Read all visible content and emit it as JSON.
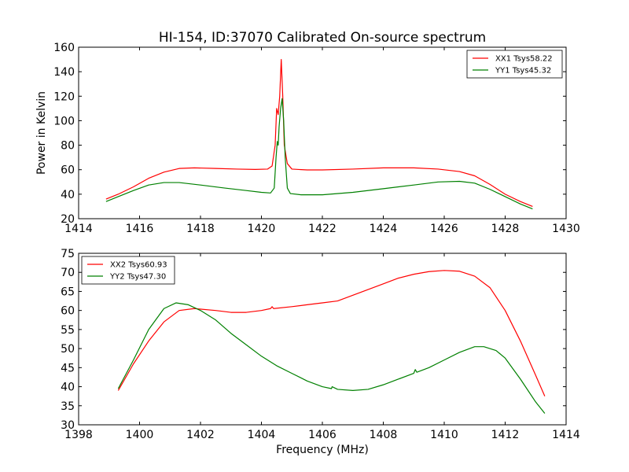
{
  "chart_data": [
    {
      "type": "line",
      "title": "HI-154, ID:37070 Calibrated On-source spectrum",
      "xlabel": "",
      "ylabel": "Power in Kelvin",
      "xlim": [
        1414,
        1430
      ],
      "ylim": [
        20,
        160
      ],
      "xticks": [
        1414,
        1416,
        1418,
        1420,
        1422,
        1424,
        1426,
        1428,
        1430
      ],
      "yticks": [
        20,
        40,
        60,
        80,
        100,
        120,
        140,
        160
      ],
      "grid": false,
      "legend_position": "top-right",
      "series": [
        {
          "name": "XX1 Tsys58.22",
          "color": "#ff0000",
          "points": [
            [
              1414.9,
              36
            ],
            [
              1415.3,
              40
            ],
            [
              1415.8,
              46
            ],
            [
              1416.3,
              53
            ],
            [
              1416.8,
              58
            ],
            [
              1417.3,
              61
            ],
            [
              1417.8,
              61.5
            ],
            [
              1418.5,
              61
            ],
            [
              1419.2,
              60.5
            ],
            [
              1419.8,
              60.2
            ],
            [
              1420.2,
              60.5
            ],
            [
              1420.35,
              63
            ],
            [
              1420.45,
              80
            ],
            [
              1420.5,
              110
            ],
            [
              1420.55,
              105
            ],
            [
              1420.6,
              120
            ],
            [
              1420.65,
              150
            ],
            [
              1420.7,
              120
            ],
            [
              1420.75,
              80
            ],
            [
              1420.85,
              65
            ],
            [
              1421.0,
              60.5
            ],
            [
              1421.5,
              59.8
            ],
            [
              1422.0,
              59.8
            ],
            [
              1423.0,
              60.5
            ],
            [
              1424.0,
              61.5
            ],
            [
              1425.0,
              61.5
            ],
            [
              1425.8,
              60.5
            ],
            [
              1426.5,
              58.5
            ],
            [
              1427.0,
              55
            ],
            [
              1427.5,
              48
            ],
            [
              1428.0,
              40
            ],
            [
              1428.5,
              34
            ],
            [
              1428.9,
              30
            ]
          ]
        },
        {
          "name": "YY1 Tsys45.32",
          "color": "#008000",
          "points": [
            [
              1414.9,
              34
            ],
            [
              1415.3,
              38
            ],
            [
              1415.8,
              43
            ],
            [
              1416.3,
              47.5
            ],
            [
              1416.8,
              49.5
            ],
            [
              1417.3,
              49.5
            ],
            [
              1418.0,
              47.5
            ],
            [
              1418.8,
              45
            ],
            [
              1419.5,
              43
            ],
            [
              1420.0,
              41.5
            ],
            [
              1420.3,
              41
            ],
            [
              1420.42,
              45
            ],
            [
              1420.48,
              70
            ],
            [
              1420.52,
              83
            ],
            [
              1420.55,
              80
            ],
            [
              1420.58,
              95
            ],
            [
              1420.63,
              110
            ],
            [
              1420.68,
              118
            ],
            [
              1420.73,
              100
            ],
            [
              1420.78,
              70
            ],
            [
              1420.85,
              45
            ],
            [
              1420.95,
              40.5
            ],
            [
              1421.3,
              39.5
            ],
            [
              1422.0,
              39.5
            ],
            [
              1423.0,
              41.5
            ],
            [
              1424.0,
              44.5
            ],
            [
              1425.0,
              47.5
            ],
            [
              1425.8,
              50
            ],
            [
              1426.5,
              50.5
            ],
            [
              1427.0,
              49
            ],
            [
              1427.5,
              44
            ],
            [
              1428.0,
              38
            ],
            [
              1428.5,
              32
            ],
            [
              1428.9,
              28
            ]
          ]
        }
      ]
    },
    {
      "type": "line",
      "title": "",
      "xlabel": "Frequency (MHz)",
      "ylabel": "",
      "xlim": [
        1398,
        1414
      ],
      "ylim": [
        30,
        75
      ],
      "xticks": [
        1398,
        1400,
        1402,
        1404,
        1406,
        1408,
        1410,
        1412,
        1414
      ],
      "yticks": [
        30,
        35,
        40,
        45,
        50,
        55,
        60,
        65,
        70,
        75
      ],
      "grid": false,
      "legend_position": "top-left",
      "series": [
        {
          "name": "XX2 Tsys60.93",
          "color": "#ff0000",
          "points": [
            [
              1399.3,
              39
            ],
            [
              1399.8,
              46
            ],
            [
              1400.3,
              52
            ],
            [
              1400.8,
              57
            ],
            [
              1401.3,
              60
            ],
            [
              1401.8,
              60.5
            ],
            [
              1402.5,
              60
            ],
            [
              1403.0,
              59.5
            ],
            [
              1403.5,
              59.5
            ],
            [
              1404.0,
              60
            ],
            [
              1404.3,
              60.5
            ],
            [
              1404.35,
              61
            ],
            [
              1404.4,
              60.5
            ],
            [
              1405.0,
              61
            ],
            [
              1405.5,
              61.5
            ],
            [
              1406.0,
              62
            ],
            [
              1406.5,
              62.5
            ],
            [
              1407.0,
              64
            ],
            [
              1407.5,
              65.5
            ],
            [
              1408.0,
              67
            ],
            [
              1408.5,
              68.5
            ],
            [
              1409.0,
              69.5
            ],
            [
              1409.5,
              70.2
            ],
            [
              1410.0,
              70.5
            ],
            [
              1410.5,
              70.3
            ],
            [
              1411.0,
              69
            ],
            [
              1411.5,
              66
            ],
            [
              1412.0,
              60
            ],
            [
              1412.5,
              52
            ],
            [
              1413.0,
              43
            ],
            [
              1413.3,
              37.5
            ]
          ]
        },
        {
          "name": "YY2 Tsys47.30",
          "color": "#008000",
          "points": [
            [
              1399.3,
              39.5
            ],
            [
              1399.8,
              47
            ],
            [
              1400.3,
              55
            ],
            [
              1400.8,
              60.5
            ],
            [
              1401.2,
              62
            ],
            [
              1401.6,
              61.5
            ],
            [
              1402.0,
              60
            ],
            [
              1402.5,
              57.5
            ],
            [
              1403.0,
              54
            ],
            [
              1403.5,
              51
            ],
            [
              1404.0,
              48
            ],
            [
              1404.5,
              45.5
            ],
            [
              1405.0,
              43.5
            ],
            [
              1405.5,
              41.5
            ],
            [
              1406.0,
              40
            ],
            [
              1406.3,
              39.5
            ],
            [
              1406.32,
              40
            ],
            [
              1406.5,
              39.3
            ],
            [
              1407.0,
              39
            ],
            [
              1407.5,
              39.3
            ],
            [
              1408.0,
              40.5
            ],
            [
              1408.5,
              42
            ],
            [
              1409.0,
              43.5
            ],
            [
              1409.05,
              44.5
            ],
            [
              1409.1,
              43.8
            ],
            [
              1409.5,
              45
            ],
            [
              1410.0,
              47
            ],
            [
              1410.5,
              49
            ],
            [
              1411.0,
              50.5
            ],
            [
              1411.3,
              50.5
            ],
            [
              1411.7,
              49.5
            ],
            [
              1412.0,
              47.5
            ],
            [
              1412.5,
              42
            ],
            [
              1413.0,
              36
            ],
            [
              1413.3,
              33
            ]
          ]
        }
      ]
    }
  ]
}
